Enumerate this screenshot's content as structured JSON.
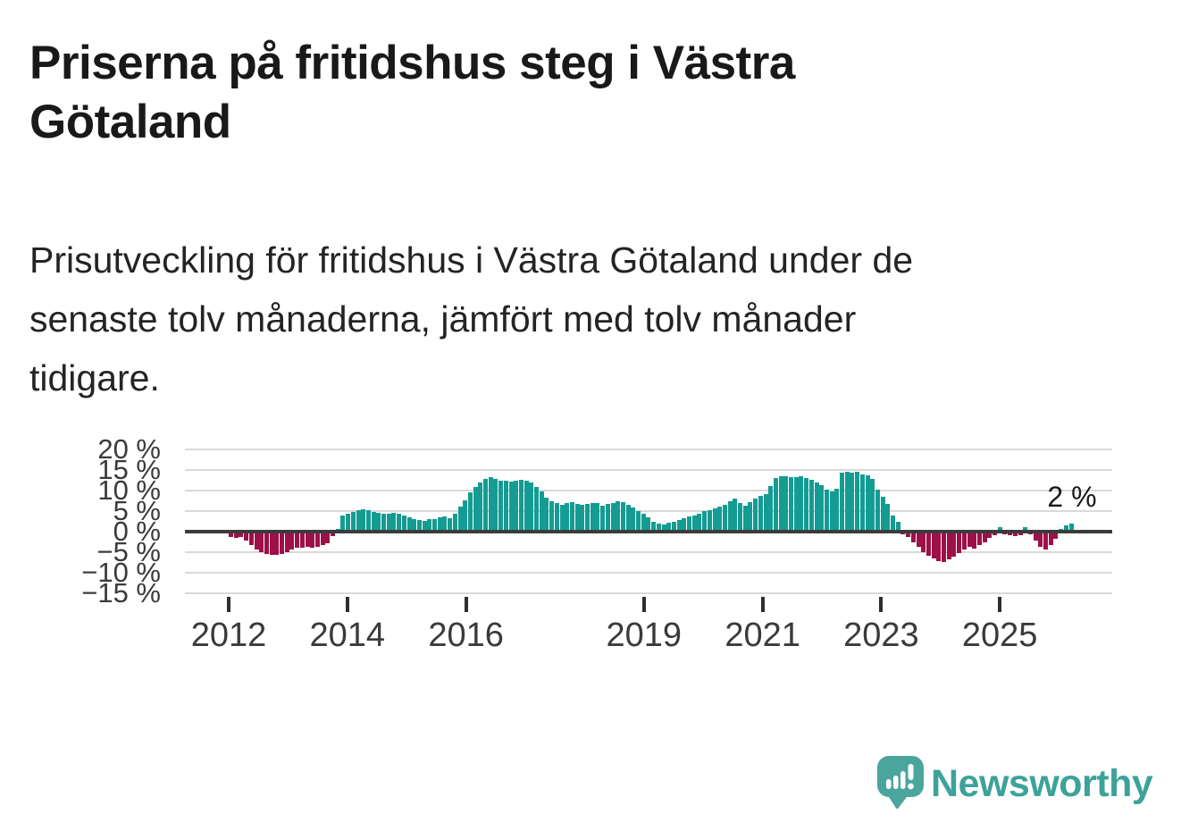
{
  "page": {
    "title": "Priserna på fritidshus steg i Västra Götaland",
    "title_lines": [
      "Priserna på fritidshus steg i Västra",
      "Götaland"
    ],
    "subtitle": "Prisutveckling för fritidshus i Västra Götaland under de senaste tolv månaderna, jämfört med tolv månader tidigare.",
    "subtitle_lines": [
      "Prisutveckling för fritidshus i Västra Götaland under de",
      "senaste tolv månaderna, jämfört med tolv månader",
      "tidigare."
    ],
    "brand": "Newsworthy"
  },
  "chart_data": {
    "type": "bar",
    "title": "Priserna på fritidshus steg i Västra Götaland",
    "xlabel": "",
    "ylabel": "",
    "unit": "%",
    "grid": true,
    "legend": "none",
    "ylim": [
      -15,
      20
    ],
    "yticks": [
      20,
      15,
      10,
      5,
      0,
      -5,
      -10,
      -15
    ],
    "ytick_labels": [
      "20 %",
      "15 %",
      "10 %",
      "5 %",
      "0 %",
      "−5 %",
      "−10 %",
      "−15 %"
    ],
    "xtick_years": [
      2012,
      2014,
      2016,
      2019,
      2021,
      2023,
      2025
    ],
    "xtick_labels": [
      "2012",
      "2014",
      "2016",
      "2019",
      "2021",
      "2023",
      "2025"
    ],
    "x_start": "2012-01",
    "x_freq": "monthly",
    "x_end": "2025-10",
    "annotation": {
      "text": "2 %",
      "value": 2
    },
    "colors": {
      "positive": "#149c92",
      "negative": "#9d1048",
      "gridline": "#d9d9d9",
      "zero_line": "#3b3b3b",
      "brand_teal": "#3ca29a"
    },
    "values": [
      -1.4,
      -1.6,
      -1.3,
      -2.1,
      -3.2,
      -4.3,
      -5.0,
      -5.4,
      -5.7,
      -5.7,
      -5.4,
      -5.0,
      -4.3,
      -3.9,
      -3.9,
      -3.6,
      -3.9,
      -3.6,
      -3.2,
      -2.9,
      -1.1,
      0.6,
      3.9,
      4.4,
      4.8,
      5.2,
      5.5,
      5.2,
      4.8,
      4.5,
      4.3,
      4.3,
      4.6,
      4.3,
      3.9,
      3.4,
      3.0,
      2.9,
      2.6,
      3.0,
      3.1,
      3.4,
      3.6,
      3.2,
      4.3,
      6.0,
      7.7,
      9.5,
      10.8,
      11.9,
      12.8,
      13.3,
      12.9,
      12.5,
      12.3,
      12.2,
      12.5,
      12.7,
      12.4,
      12.0,
      10.9,
      9.7,
      8.3,
      7.4,
      6.9,
      6.6,
      6.9,
      7.2,
      6.8,
      6.6,
      6.8,
      7.0,
      6.9,
      6.4,
      6.7,
      7.0,
      7.3,
      7.1,
      6.6,
      5.9,
      5.1,
      4.4,
      3.4,
      2.4,
      2.0,
      1.7,
      2.1,
      2.4,
      2.8,
      3.3,
      3.6,
      3.9,
      4.4,
      4.9,
      5.3,
      5.7,
      6.1,
      6.6,
      7.4,
      8.0,
      7.0,
      6.4,
      7.2,
      8.0,
      8.6,
      9.2,
      11.0,
      13.0,
      13.4,
      13.5,
      13.3,
      13.2,
      13.5,
      13.0,
      12.6,
      12.0,
      11.4,
      10.2,
      9.8,
      10.4,
      14.3,
      14.5,
      14.4,
      14.6,
      14.0,
      13.6,
      12.8,
      10.2,
      8.5,
      6.7,
      4.0,
      2.5,
      -0.6,
      -1.3,
      -2.6,
      -3.8,
      -5.0,
      -5.8,
      -6.6,
      -7.2,
      -7.4,
      -6.8,
      -6.0,
      -5.2,
      -4.4,
      -3.8,
      -4.2,
      -3.3,
      -2.5,
      -1.5,
      -0.8,
      1.0,
      -0.7,
      -0.9,
      -1.1,
      -0.8,
      1.0,
      -0.6,
      -2.1,
      -3.6,
      -4.4,
      -3.3,
      -1.8,
      0.6,
      1.5,
      2.0
    ]
  }
}
